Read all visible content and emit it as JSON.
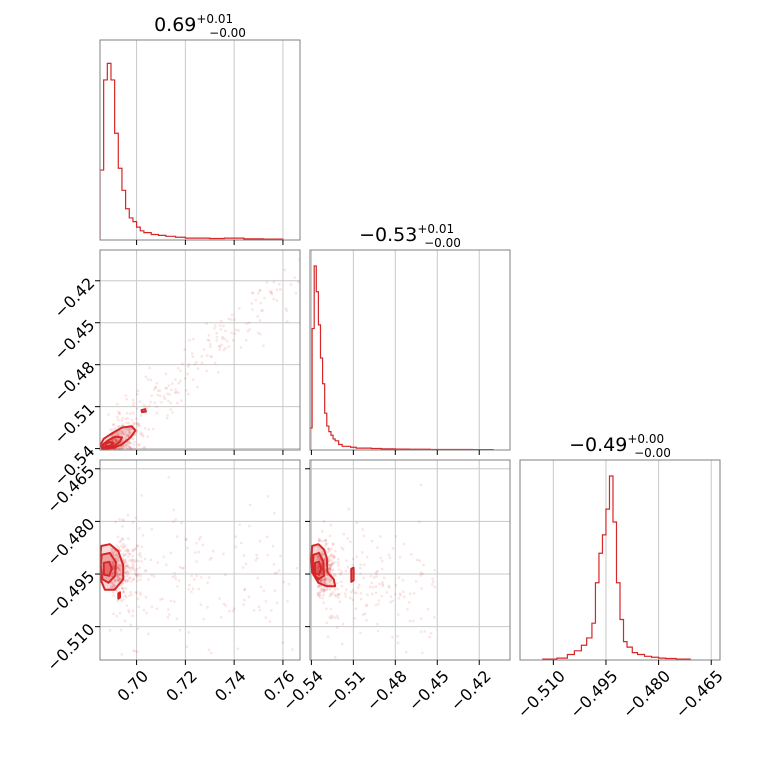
{
  "colors": {
    "accent": "#d62728",
    "grid": "#c8c8c8",
    "frame": "#808080"
  },
  "chart_data": {
    "type": "corner",
    "grid": true,
    "parameters": [
      {
        "title": {
          "median": "0.69",
          "plus": "+0.01",
          "minus": "−0.00"
        },
        "range": [
          0.685,
          0.767
        ],
        "ticks": [
          0.7,
          0.72,
          0.74,
          0.76
        ],
        "tick_labels": [
          "0.70",
          "0.72",
          "0.74",
          "0.76"
        ]
      },
      {
        "title": {
          "median": "−0.53",
          "plus": "+0.01",
          "minus": "−0.00"
        },
        "range": [
          -0.541,
          -0.398
        ],
        "ticks": [
          -0.54,
          -0.51,
          -0.48,
          -0.45,
          -0.42
        ],
        "tick_labels": [
          "−0.54",
          "−0.51",
          "−0.48",
          "−0.45",
          "−0.42"
        ]
      },
      {
        "title": {
          "median": "−0.49",
          "plus": "+0.00",
          "minus": "−0.00"
        },
        "range": [
          -0.5195,
          -0.4625
        ],
        "ticks": [
          -0.51,
          -0.495,
          -0.48,
          -0.465
        ],
        "tick_labels": [
          "−0.510",
          "−0.495",
          "−0.480",
          "−0.465"
        ]
      }
    ],
    "histograms": [
      {
        "param": 0,
        "max": 1.0,
        "edges": [
          0.685,
          0.6865,
          0.688,
          0.6895,
          0.691,
          0.6925,
          0.694,
          0.6955,
          0.697,
          0.6985,
          0.7,
          0.7015,
          0.703,
          0.706,
          0.709,
          0.712,
          0.716,
          0.72,
          0.725,
          0.73,
          0.736,
          0.744,
          0.752,
          0.76
        ],
        "values": [
          0.38,
          0.87,
          0.96,
          0.87,
          0.58,
          0.39,
          0.27,
          0.17,
          0.12,
          0.1,
          0.07,
          0.05,
          0.04,
          0.03,
          0.025,
          0.02,
          0.015,
          0.01,
          0.01,
          0.008,
          0.01,
          0.006,
          0.005
        ]
      },
      {
        "param": 1,
        "max": 1.0,
        "edges": [
          -0.541,
          -0.5395,
          -0.538,
          -0.5365,
          -0.535,
          -0.5335,
          -0.532,
          -0.5305,
          -0.529,
          -0.5275,
          -0.526,
          -0.5245,
          -0.523,
          -0.5205,
          -0.518,
          -0.515,
          -0.512,
          -0.508,
          -0.503,
          -0.497,
          -0.49,
          -0.48,
          -0.47,
          -0.455,
          -0.44,
          -0.425,
          -0.41
        ],
        "values": [
          0.12,
          0.66,
          1.0,
          0.86,
          0.68,
          0.5,
          0.36,
          0.2,
          0.13,
          0.1,
          0.08,
          0.06,
          0.05,
          0.03,
          0.02,
          0.02,
          0.015,
          0.01,
          0.01,
          0.008,
          0.006,
          0.005,
          0.004,
          0.003,
          0.003,
          0.002
        ]
      },
      {
        "param": 2,
        "max": 1.0,
        "edges": [
          -0.513,
          -0.509,
          -0.506,
          -0.504,
          -0.502,
          -0.5005,
          -0.499,
          -0.498,
          -0.497,
          -0.496,
          -0.495,
          -0.494,
          -0.493,
          -0.492,
          -0.491,
          -0.49,
          -0.489,
          -0.4875,
          -0.486,
          -0.484,
          -0.482,
          -0.48,
          -0.478,
          -0.475,
          -0.471
        ],
        "values": [
          0.005,
          0.01,
          0.03,
          0.05,
          0.08,
          0.12,
          0.2,
          0.42,
          0.58,
          0.68,
          0.82,
          1.0,
          0.75,
          0.42,
          0.22,
          0.1,
          0.07,
          0.04,
          0.03,
          0.02,
          0.015,
          0.01,
          0.008,
          0.005
        ]
      }
    ],
    "scatter": [
      {
        "x_param": 0,
        "y_param": 1,
        "trend": "increasing",
        "core": [
          0.6895,
          -0.5365
        ],
        "spread": [
          0.0045,
          0.0055
        ],
        "corr": 0.55,
        "n_core": 260,
        "tail": {
          "from": [
            0.69,
            -0.535
          ],
          "to": [
            0.765,
            -0.415
          ],
          "width": 0.01,
          "n": 260
        },
        "contours": [
          {
            "level": "outer",
            "points": [
              [
                0.686,
                -0.5405
              ],
              [
                0.6905,
                -0.5395
              ],
              [
                0.694,
                -0.537
              ],
              [
                0.6975,
                -0.532
              ],
              [
                0.6995,
                -0.527
              ],
              [
                0.698,
                -0.524
              ],
              [
                0.694,
                -0.525
              ],
              [
                0.69,
                -0.529
              ],
              [
                0.6865,
                -0.533
              ],
              [
                0.6853,
                -0.537
              ]
            ]
          },
          {
            "level": "middle",
            "points": [
              [
                0.6865,
                -0.5395
              ],
              [
                0.6905,
                -0.5385
              ],
              [
                0.693,
                -0.5355
              ],
              [
                0.694,
                -0.532
              ],
              [
                0.691,
                -0.5315
              ],
              [
                0.688,
                -0.5345
              ],
              [
                0.6862,
                -0.537
              ]
            ]
          },
          {
            "level": "inner",
            "points": [
              [
                0.6872,
                -0.5385
              ],
              [
                0.6895,
                -0.538
              ],
              [
                0.6905,
                -0.536
              ],
              [
                0.689,
                -0.5352
              ],
              [
                0.6872,
                -0.5365
              ]
            ]
          },
          {
            "level": "small",
            "points": [
              [
                0.702,
                -0.5125
              ],
              [
                0.7035,
                -0.5118
              ],
              [
                0.7038,
                -0.5135
              ],
              [
                0.7022,
                -0.514
              ]
            ]
          }
        ]
      },
      {
        "x_param": 0,
        "y_param": 2,
        "trend": "flat",
        "core": [
          0.6895,
          -0.4935
        ],
        "spread": [
          0.004,
          0.0035
        ],
        "corr": 0.0,
        "n_core": 280,
        "tail": {
          "from": [
            0.693,
            -0.4935
          ],
          "to": [
            0.765,
            -0.497
          ],
          "width": 0.011,
          "n": 200
        },
        "contours": [
          {
            "level": "outer",
            "points": [
              [
                0.6855,
                -0.487
              ],
              [
                0.689,
                -0.4865
              ],
              [
                0.6925,
                -0.4885
              ],
              [
                0.6945,
                -0.4925
              ],
              [
                0.6945,
                -0.4965
              ],
              [
                0.691,
                -0.4995
              ],
              [
                0.687,
                -0.4995
              ],
              [
                0.6852,
                -0.4965
              ],
              [
                0.685,
                -0.491
              ]
            ]
          },
          {
            "level": "middle",
            "points": [
              [
                0.6857,
                -0.4895
              ],
              [
                0.689,
                -0.489
              ],
              [
                0.6915,
                -0.4915
              ],
              [
                0.6912,
                -0.4955
              ],
              [
                0.6885,
                -0.4975
              ],
              [
                0.686,
                -0.4965
              ],
              [
                0.6853,
                -0.4925
              ]
            ]
          },
          {
            "level": "inner",
            "points": [
              [
                0.6865,
                -0.4918
              ],
              [
                0.6888,
                -0.4915
              ],
              [
                0.6898,
                -0.4935
              ],
              [
                0.6888,
                -0.4955
              ],
              [
                0.6866,
                -0.4952
              ]
            ]
          },
          {
            "level": "small",
            "points": [
              [
                0.6925,
                -0.5005
              ],
              [
                0.6932,
                -0.5002
              ],
              [
                0.6932,
                -0.5017
              ],
              [
                0.6925,
                -0.502
              ]
            ]
          }
        ]
      },
      {
        "x_param": 1,
        "y_param": 2,
        "trend": "decreasing",
        "core": [
          -0.5355,
          -0.4935
        ],
        "spread": [
          0.0045,
          0.0035
        ],
        "corr": -0.2,
        "n_core": 280,
        "tail": {
          "from": [
            -0.53,
            -0.4955
          ],
          "to": [
            -0.45,
            -0.501
          ],
          "width": 0.008,
          "n": 200
        },
        "contours": [
          {
            "level": "outer",
            "points": [
              [
                -0.5395,
                -0.487
              ],
              [
                -0.535,
                -0.4865
              ],
              [
                -0.531,
                -0.488
              ],
              [
                -0.529,
                -0.4905
              ],
              [
                -0.5285,
                -0.4945
              ],
              [
                -0.524,
                -0.4965
              ],
              [
                -0.523,
                -0.4985
              ],
              [
                -0.529,
                -0.4985
              ],
              [
                -0.535,
                -0.4975
              ],
              [
                -0.5395,
                -0.4945
              ],
              [
                -0.54,
                -0.491
              ]
            ]
          },
          {
            "level": "middle",
            "points": [
              [
                -0.5385,
                -0.4895
              ],
              [
                -0.5345,
                -0.489
              ],
              [
                -0.5315,
                -0.4915
              ],
              [
                -0.531,
                -0.4955
              ],
              [
                -0.535,
                -0.4965
              ],
              [
                -0.538,
                -0.495
              ],
              [
                -0.539,
                -0.492
              ]
            ]
          },
          {
            "level": "inner",
            "points": [
              [
                -0.5375,
                -0.4918
              ],
              [
                -0.5345,
                -0.4915
              ],
              [
                -0.533,
                -0.4935
              ],
              [
                -0.5345,
                -0.4952
              ],
              [
                -0.5372,
                -0.4948
              ]
            ]
          },
          {
            "level": "small",
            "points": [
              [
                -0.5115,
                -0.4935
              ],
              [
                -0.5098,
                -0.4932
              ],
              [
                -0.5098,
                -0.4968
              ],
              [
                -0.5115,
                -0.4972
              ]
            ]
          }
        ]
      }
    ]
  }
}
